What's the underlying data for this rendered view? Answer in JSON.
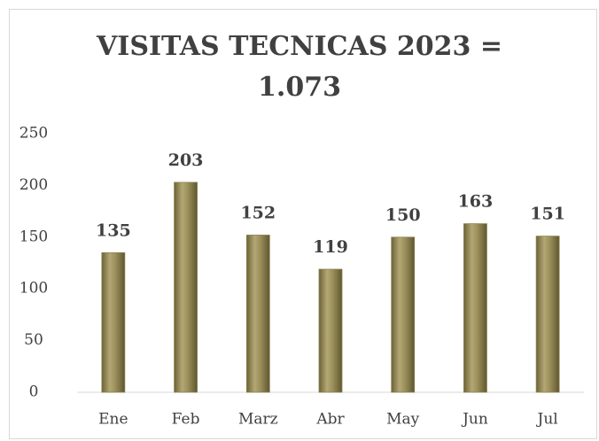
{
  "chart_data": {
    "type": "bar",
    "title": "VISITAS TECNICAS 2023 = 1.073",
    "categories": [
      "Ene",
      "Feb",
      "Marz",
      "Abr",
      "May",
      "Jun",
      "Jul"
    ],
    "values": [
      135,
      203,
      152,
      119,
      150,
      163,
      151
    ],
    "color": "#8c8250",
    "ylim": [
      0,
      250
    ],
    "yticks": [
      0,
      50,
      100,
      150,
      200,
      250
    ],
    "grid": false,
    "data_labels": true
  }
}
